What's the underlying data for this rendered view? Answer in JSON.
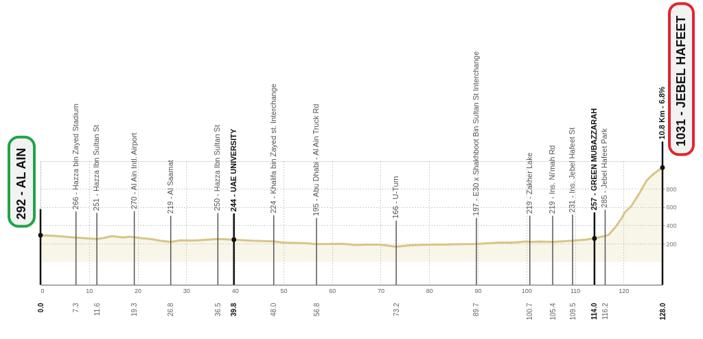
{
  "chart_data": {
    "type": "area",
    "x": [
      0,
      3,
      7.3,
      11.6,
      13,
      14.7,
      17,
      18.5,
      19.3,
      21,
      22.7,
      24.6,
      26.8,
      28.8,
      31.7,
      36.5,
      39.8,
      43.5,
      48,
      50,
      54.3,
      56.8,
      62.3,
      64.7,
      67,
      69.8,
      73.2,
      76.4,
      80,
      83.5,
      86.8,
      89.7,
      94.3,
      97.2,
      100,
      100.7,
      102.8,
      105.4,
      109.5,
      112.2,
      114,
      116.2,
      116.9,
      118.3,
      119.5,
      120.2,
      121.6,
      123.1,
      124.7,
      125.9,
      127.1,
      128
    ],
    "series": [
      {
        "color": "#d8c586",
        "values": [
          292,
          285,
          266,
          251,
          262,
          282,
          267,
          275,
          270,
          258,
          250,
          232,
          219,
          235,
          233,
          250,
          244,
          232,
          224,
          212,
          205,
          195,
          198,
          185,
          188,
          188,
          166,
          183,
          188,
          190,
          195,
          197,
          212,
          212,
          224,
          219,
          222,
          219,
          231,
          243,
          257,
          285,
          295,
          380,
          470,
          537,
          612,
          737,
          887,
          950,
          1000,
          1031
        ]
      }
    ],
    "xlim": [
      0,
      128
    ],
    "xticks": [
      0,
      10,
      20,
      30,
      40,
      50,
      60,
      70,
      80,
      90,
      100,
      110,
      120
    ],
    "ylim": [
      -250,
      1100
    ],
    "yticks": [
      200,
      400,
      600,
      800
    ],
    "x2lim": [
      0,
      128
    ],
    "x2ticks": [
      {
        "value": 0,
        "label": "0.0"
      },
      7.3,
      11.6,
      19.3,
      26.8,
      36.5,
      39.8,
      {
        "value": 48,
        "label": "48.0"
      },
      56.8,
      73.2,
      89.7,
      100.7,
      105.4,
      109.5,
      {
        "value": 114,
        "label": "114.0"
      },
      116.2,
      {
        "value": 128,
        "label": "128.0"
      }
    ],
    "grid": true,
    "ref_lines": [
      {
        "axis": "x",
        "value": 0,
        "color": "#111111"
      },
      {
        "axis": "x",
        "value": 7.3,
        "label": "266 - Hazza bin Zayed Stadium",
        "color": "#555555"
      },
      {
        "axis": "x",
        "value": 11.6,
        "label": "251 - Hazza Ibn Sultan St",
        "color": "#555555"
      },
      {
        "axis": "x",
        "value": 19.3,
        "label": "270 - Al Ain Intl. Airport",
        "color": "#555555"
      },
      {
        "axis": "x",
        "value": 26.8,
        "label": "219 - Al Saamat",
        "color": "#555555"
      },
      {
        "axis": "x",
        "value": 36.5,
        "label": "250 - Hazza Ibn Sultan St",
        "color": "#555555"
      },
      {
        "axis": "x",
        "value": 39.8,
        "label": "244 - UAE UNIVERSITY",
        "color": "#111111"
      },
      {
        "axis": "x",
        "value": 48,
        "label": "224 - Khalifa bin Zayed st. Interchange",
        "color": "#555555"
      },
      {
        "axis": "x",
        "value": 56.8,
        "label": "195 - Abu Dhabi - Al Ain Truck Rd",
        "color": "#555555"
      },
      {
        "axis": "x",
        "value": 73.2,
        "label": "166 - U-Turn",
        "color": "#555555"
      },
      {
        "axis": "x",
        "value": 89.7,
        "label": "197 - E30 x Shakhboot Bin Sultan St Interchange",
        "color": "#555555"
      },
      {
        "axis": "x",
        "value": 100.7,
        "label": "219 - Zakher Lake",
        "color": "#555555"
      },
      {
        "axis": "x",
        "value": 105.4,
        "label": "219 - Ins. Ni'mah Rd",
        "color": "#555555"
      },
      {
        "axis": "x",
        "value": 109.5,
        "label": "231 - Ins. Jebel Hafeet St",
        "color": "#555555"
      },
      {
        "axis": "x",
        "value": 114,
        "label": "257 - GREEN MUBAZZARAH",
        "color": "#111111"
      },
      {
        "axis": "x",
        "value": 116.2,
        "label": "285 - Jebel Hafeet Park",
        "color": "#555555"
      },
      {
        "axis": "x",
        "value": 128,
        "label": "10.8 Km - 6.8%",
        "color": "#111111"
      }
    ],
    "annotations": [
      {
        "text": "292 - AL AIN",
        "x": 0,
        "y": 292
      },
      {
        "text": "1031 - JEBEL HAFEET",
        "x": 128,
        "y": 1031
      }
    ]
  }
}
